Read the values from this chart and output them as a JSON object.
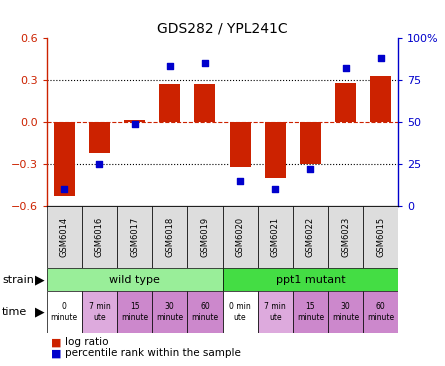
{
  "title": "GDS282 / YPL241C",
  "samples": [
    "GSM6014",
    "GSM6016",
    "GSM6017",
    "GSM6018",
    "GSM6019",
    "GSM6020",
    "GSM6021",
    "GSM6022",
    "GSM6023",
    "GSM6015"
  ],
  "log_ratio": [
    -0.53,
    -0.22,
    0.01,
    0.27,
    0.27,
    -0.32,
    -0.4,
    -0.3,
    0.28,
    0.33
  ],
  "percentile_rank": [
    10,
    25,
    49,
    83,
    85,
    15,
    10,
    22,
    82,
    88
  ],
  "ylim_left": [
    -0.6,
    0.6
  ],
  "ylim_right": [
    0,
    100
  ],
  "yticks_left": [
    -0.6,
    -0.3,
    0.0,
    0.3,
    0.6
  ],
  "yticks_right": [
    0,
    25,
    50,
    75,
    100
  ],
  "ytick_labels_right": [
    "0",
    "25",
    "50",
    "75",
    "100%"
  ],
  "hlines_dotted": [
    0.3,
    -0.3
  ],
  "hline_zero": 0.0,
  "bar_color": "#cc2200",
  "dot_color": "#0000cc",
  "strain_groups": [
    {
      "label": "wild type",
      "start": 0,
      "end": 5,
      "color": "#99ee99"
    },
    {
      "label": "ppt1 mutant",
      "start": 5,
      "end": 10,
      "color": "#44dd44"
    }
  ],
  "time_texts": [
    "0\nminute",
    "7 min\nute",
    "15\nminute",
    "30\nminute",
    "60\nminute",
    "0 min\nute",
    "7 min\nute",
    "15\nminute",
    "30\nminute",
    "60\nminute"
  ],
  "time_cell_colors": [
    "#ffffff",
    "#ddaadd",
    "#cc88cc",
    "#cc88cc",
    "#cc88cc",
    "#ffffff",
    "#ddaadd",
    "#cc88cc",
    "#cc88cc",
    "#cc88cc"
  ],
  "legend_bar_color": "#cc2200",
  "legend_dot_color": "#0000cc",
  "legend_bar_label": "log ratio",
  "legend_dot_label": "percentile rank within the sample",
  "tick_label_color_left": "#cc2200",
  "tick_label_color_right": "#0000cc",
  "zero_line_color": "#cc2200",
  "bg_color": "#ffffff",
  "plot_bg_color": "#ffffff",
  "gsm_label_color": "#888888",
  "gsm_bg_color": "#dddddd"
}
